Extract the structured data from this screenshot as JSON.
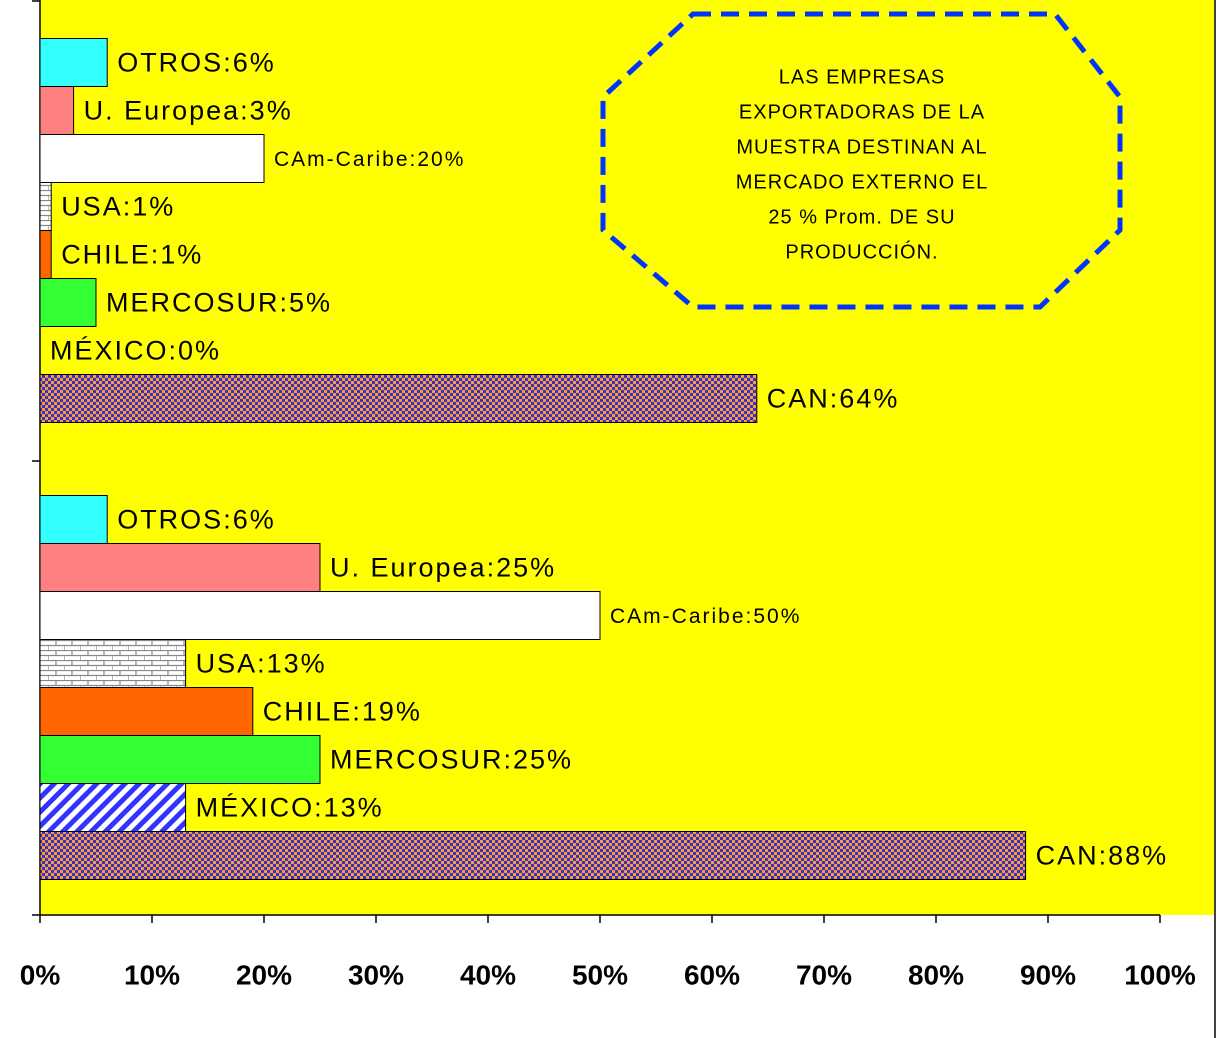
{
  "chart_data": {
    "type": "bar",
    "orientation": "horizontal",
    "categories": [
      null,
      null
    ],
    "series": [
      {
        "color": "#3333cc",
        "pattern": "checker",
        "values": [
          64,
          88
        ],
        "value_labels": [
          "CAN:64%",
          "CAN:88%"
        ]
      },
      {
        "color": "#3333ff",
        "pattern": "diagonal",
        "values": [
          0,
          13
        ],
        "value_labels": [
          "MÉXICO:0%",
          "MÉXICO:13%"
        ]
      },
      {
        "color": "#33ff33",
        "values": [
          5,
          25
        ],
        "value_labels": [
          "MERCOSUR:5%",
          "MERCOSUR:25%"
        ]
      },
      {
        "color": "#ff6600",
        "values": [
          1,
          19
        ],
        "value_labels": [
          "CHILE:1%",
          "CHILE:19%"
        ]
      },
      {
        "color": "#c0c0c0",
        "pattern": "brick",
        "values": [
          1,
          13
        ],
        "value_labels": [
          "USA:1%",
          "USA:13%"
        ]
      },
      {
        "color": "#ffffff",
        "values": [
          20,
          50
        ],
        "value_labels": [
          "CAm-Caribe:20%",
          "CAm-Caribe:50%"
        ]
      },
      {
        "color": "#ff8080",
        "values": [
          3,
          25
        ],
        "value_labels": [
          "U. Europea:3%",
          "U. Europea:25%"
        ]
      },
      {
        "color": "#33ffff",
        "values": [
          6,
          6
        ],
        "value_labels": [
          "OTROS:6%",
          "OTROS:6%"
        ]
      }
    ],
    "xlim": [
      0,
      100
    ],
    "xticks": [
      {
        "value": 0,
        "label": "0%"
      },
      {
        "value": 10,
        "label": "10%"
      },
      {
        "value": 20,
        "label": "20%"
      },
      {
        "value": 30,
        "label": "30%"
      },
      {
        "value": 40,
        "label": "40%"
      },
      {
        "value": 50,
        "label": "50%"
      },
      {
        "value": 60,
        "label": "60%"
      },
      {
        "value": 70,
        "label": "70%"
      },
      {
        "value": 80,
        "label": "80%"
      },
      {
        "value": 90,
        "label": "90%"
      },
      {
        "value": 100,
        "label": "100%"
      }
    ],
    "background": "#ffff00",
    "annotation": [
      "LAS EMPRESAS",
      "EXPORTADORAS DE LA",
      "MUESTRA DESTINAN AL",
      "MERCADO EXTERNO EL",
      "25 % Prom. DE SU",
      "PRODUCCIÓN."
    ]
  }
}
